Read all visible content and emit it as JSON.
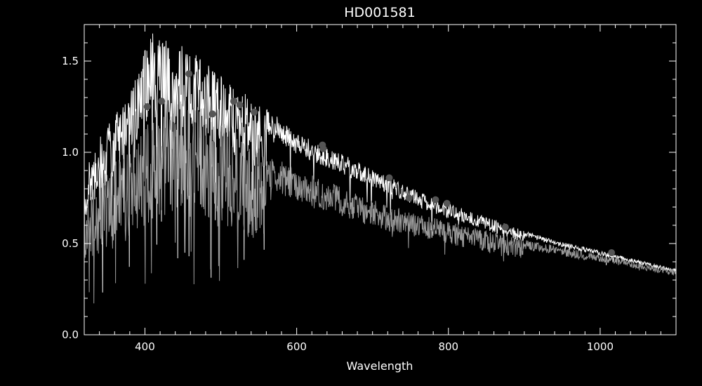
{
  "chart_data": {
    "type": "line",
    "title": "HD001581",
    "xlabel": "Wavelength",
    "ylabel": "",
    "xlim": [
      320,
      1100
    ],
    "ylim": [
      0.0,
      1.7
    ],
    "xticks": [
      400,
      600,
      800,
      1000
    ],
    "xtick_labels": [
      "400",
      "600",
      "800",
      "1000"
    ],
    "yticks": [
      0.0,
      0.5,
      1.0,
      1.5
    ],
    "ytick_labels": [
      "0.0",
      "0.5",
      "1.0",
      "1.5"
    ],
    "grid": false,
    "legend": "none",
    "colors": {
      "background": "#000000",
      "axes": "#ffffff",
      "upper_spectrum": "#ffffff",
      "lower_spectrum": "#9a9a9a",
      "points": "#555555"
    },
    "series": [
      {
        "kind": "upper-spectrum-envelope",
        "x": [
          320,
          340,
          360,
          380,
          390,
          400,
          410,
          420,
          440,
          460,
          480,
          500,
          520,
          540,
          560,
          580,
          600,
          620,
          640,
          660,
          680,
          700,
          720,
          740,
          760,
          780,
          800,
          820,
          840,
          860,
          880,
          900,
          920,
          940,
          960,
          980,
          1000,
          1020,
          1040,
          1060,
          1080,
          1100
        ],
        "y": [
          0.88,
          1.08,
          1.22,
          1.35,
          1.42,
          1.58,
          1.66,
          1.62,
          1.6,
          1.56,
          1.5,
          1.42,
          1.36,
          1.3,
          1.24,
          1.18,
          1.11,
          1.07,
          1.03,
          0.99,
          0.95,
          0.91,
          0.87,
          0.83,
          0.79,
          0.75,
          0.72,
          0.69,
          0.66,
          0.63,
          0.6,
          0.57,
          0.545,
          0.52,
          0.5,
          0.48,
          0.46,
          0.44,
          0.42,
          0.4,
          0.38,
          0.36
        ]
      },
      {
        "kind": "lower-spectrum-envelope",
        "x": [
          320,
          340,
          360,
          380,
          390,
          400,
          410,
          420,
          440,
          460,
          480,
          500,
          520,
          540,
          560,
          580,
          600,
          620,
          640,
          660,
          680,
          700,
          720,
          740,
          760,
          780,
          800,
          820,
          840,
          860,
          880,
          900,
          920,
          940,
          960,
          980,
          1000,
          1020,
          1040,
          1060,
          1080,
          1100
        ],
        "y": [
          0.72,
          0.85,
          0.95,
          1.03,
          1.07,
          1.14,
          1.22,
          1.27,
          1.29,
          1.28,
          1.24,
          1.18,
          1.12,
          1.06,
          1.0,
          0.96,
          0.91,
          0.88,
          0.84,
          0.81,
          0.77,
          0.74,
          0.71,
          0.69,
          0.66,
          0.64,
          0.62,
          0.6,
          0.58,
          0.56,
          0.54,
          0.52,
          0.505,
          0.49,
          0.47,
          0.455,
          0.44,
          0.425,
          0.41,
          0.39,
          0.375,
          0.36
        ]
      },
      {
        "kind": "photometry-points",
        "x": [
          403,
          422,
          458,
          489,
          517,
          525,
          544,
          634,
          635,
          722,
          748,
          783,
          798,
          875,
          1015
        ],
        "y": [
          1.25,
          1.28,
          1.43,
          1.21,
          1.28,
          1.26,
          1.22,
          1.04,
          1.02,
          0.86,
          0.75,
          0.74,
          0.72,
          0.59,
          0.45
        ]
      }
    ]
  }
}
